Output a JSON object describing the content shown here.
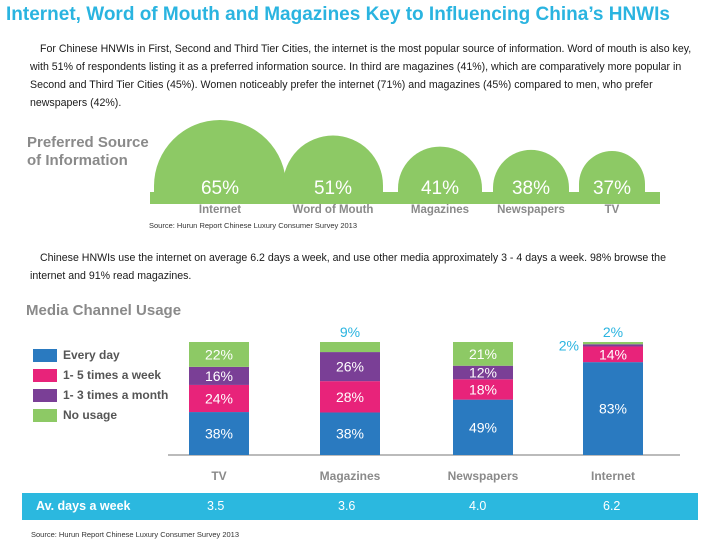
{
  "title": "Internet, Word of Mouth and Magazines Key to Influencing China’s HNWIs",
  "paragraph1": "For Chinese HNWIs in First, Second and Third Tier Cities, the internet is the most popular source of information. Word of mouth is also key, with 51% of respondents listing it as a preferred information source. In third are magazines (41%), which are comparatively more popular in Second and Third Tier Cities (45%). Women noticeably prefer the internet (71%) and magazines (45%) compared to men, who prefer newspapers (42%).",
  "paragraph2": "Chinese HNWIs use the internet on average 6.2 days a week, and use other media approximately 3 - 4 days a week. 98% browse the internet and 91% read magazines.",
  "source_label": "Source: Hurun Report Chinese Luxury Consumer Survey 2013",
  "colors": {
    "title": "#2ab4e0",
    "green": "#8dc965",
    "every_day": "#2a7ac0",
    "times_week": "#e8237a",
    "times_month": "#7a3f96",
    "no_usage": "#8dc965",
    "avbar": "#2bb8df"
  },
  "chart_data": [
    {
      "type": "bar",
      "title": "Preferred Source of Information",
      "title_lines": [
        "Preferred Source",
        "of Information"
      ],
      "categories": [
        "Internet",
        "Word of Mouth",
        "Magazines",
        "Newspapers",
        "TV"
      ],
      "values": [
        65,
        51,
        41,
        38,
        37
      ],
      "value_labels": [
        "65%",
        "51%",
        "41%",
        "38%",
        "37%"
      ],
      "unit": "%"
    },
    {
      "type": "bar",
      "stacked": true,
      "title": "Media Channel Usage",
      "categories": [
        "TV",
        "Magazines",
        "Newspapers",
        "Internet"
      ],
      "ylim": [
        0,
        100
      ],
      "series": [
        {
          "name": "Every day",
          "values": [
            38,
            38,
            49,
            83
          ]
        },
        {
          "name": "1- 5 times a week",
          "values": [
            24,
            28,
            18,
            14
          ]
        },
        {
          "name": "1- 3 times a month",
          "values": [
            16,
            26,
            12,
            2
          ]
        },
        {
          "name": "No usage",
          "values": [
            22,
            9,
            21,
            2
          ]
        }
      ],
      "legend_position": "left"
    }
  ],
  "av_days": {
    "label": "Av. days a week",
    "values": [
      "3.5",
      "3.6",
      "4.0",
      "6.2"
    ]
  }
}
